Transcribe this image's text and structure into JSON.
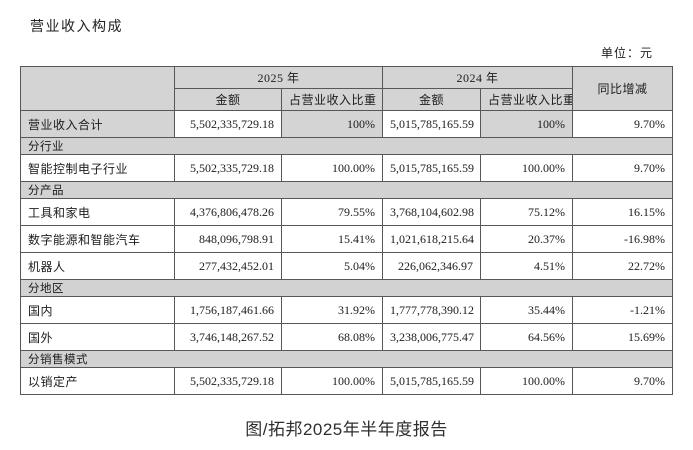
{
  "page": {
    "title": "营业收入构成",
    "unit_label": "单位：元",
    "caption": "图/拓邦2025年半年度报告"
  },
  "table": {
    "header": {
      "year_groups": [
        {
          "label": "2025 年"
        },
        {
          "label": "2024 年"
        }
      ],
      "yoy_label": "同比增减",
      "sub_headers": [
        "金额",
        "占营业收入比重",
        "金额",
        "占营业收入比重"
      ]
    },
    "rows": [
      {
        "type": "data",
        "label": "营业收入合计",
        "shaded": true,
        "cells": [
          "5,502,335,729.18",
          "100%",
          "5,015,785,165.59",
          "100%",
          "9.70%"
        ]
      },
      {
        "type": "section",
        "label": "分行业"
      },
      {
        "type": "data",
        "label": "智能控制电子行业",
        "cells": [
          "5,502,335,729.18",
          "100.00%",
          "5,015,785,165.59",
          "100.00%",
          "9.70%"
        ]
      },
      {
        "type": "section",
        "label": "分产品"
      },
      {
        "type": "data",
        "label": "工具和家电",
        "cells": [
          "4,376,806,478.26",
          "79.55%",
          "3,768,104,602.98",
          "75.12%",
          "16.15%"
        ]
      },
      {
        "type": "data",
        "label": "数字能源和智能汽车",
        "cells": [
          "848,096,798.91",
          "15.41%",
          "1,021,618,215.64",
          "20.37%",
          "-16.98%"
        ]
      },
      {
        "type": "data",
        "label": "机器人",
        "cells": [
          "277,432,452.01",
          "5.04%",
          "226,062,346.97",
          "4.51%",
          "22.72%"
        ]
      },
      {
        "type": "section",
        "label": "分地区"
      },
      {
        "type": "data",
        "label": "国内",
        "cells": [
          "1,756,187,461.66",
          "31.92%",
          "1,777,778,390.12",
          "35.44%",
          "-1.21%"
        ]
      },
      {
        "type": "data",
        "label": "国外",
        "cells": [
          "3,746,148,267.52",
          "68.08%",
          "3,238,006,775.47",
          "64.56%",
          "15.69%"
        ]
      },
      {
        "type": "section",
        "label": "分销售模式"
      },
      {
        "type": "data",
        "label": "以销定产",
        "cells": [
          "5,502,335,729.18",
          "100.00%",
          "5,015,785,165.59",
          "100.00%",
          "9.70%"
        ]
      }
    ],
    "colors": {
      "header_bg": "#d4d4d4",
      "section_bg": "#d2d2d2",
      "border": "#575757",
      "shaded_cell": "#d4d4d4"
    }
  }
}
